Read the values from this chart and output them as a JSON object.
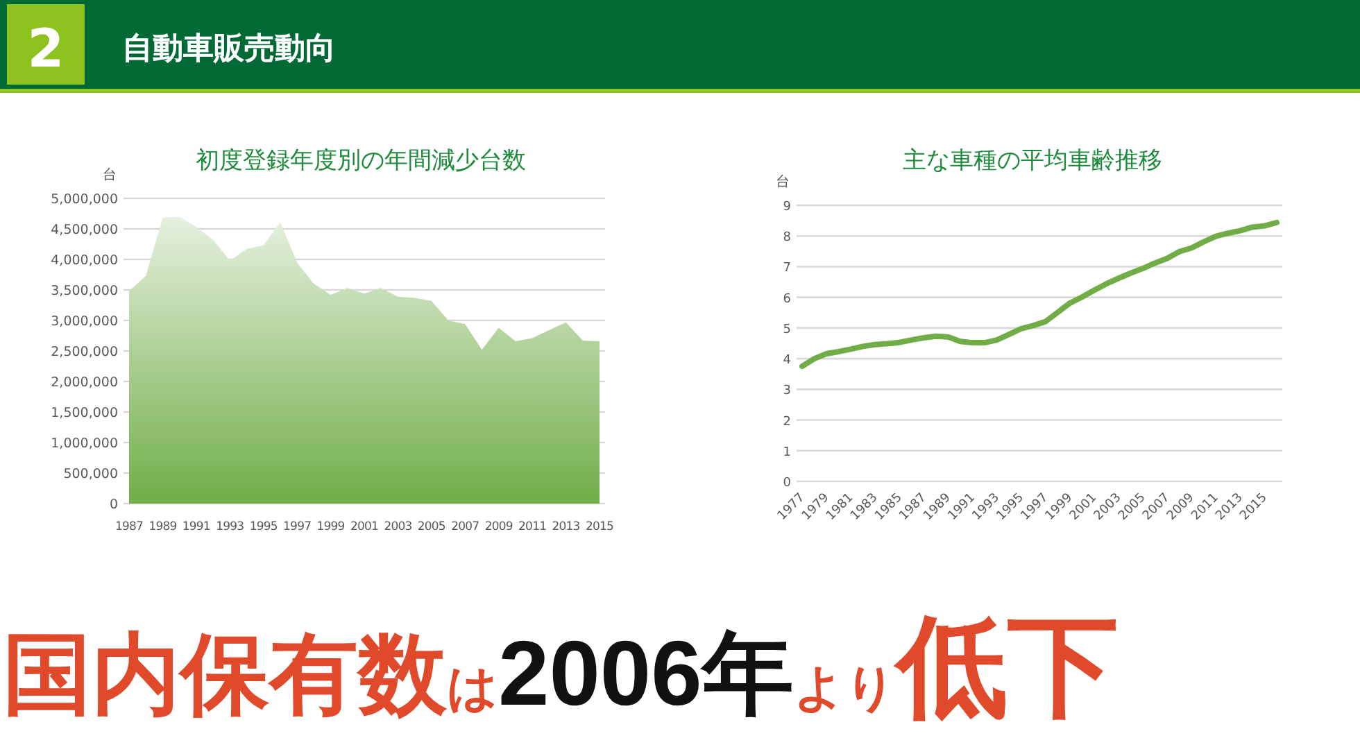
{
  "chart_data": [
    {
      "type": "other",
      "title": "自動車販売動向",
      "annotations": [
        "2",
        "国内保有数は2006年より低下"
      ]
    },
    {
      "type": "area",
      "title": "初度登録年度別の年間減少台数",
      "ylabel": "台",
      "categories": [
        "1987",
        null,
        "1989",
        null,
        "1991",
        null,
        "1993",
        null,
        "1995",
        null,
        "1997",
        null,
        "1999",
        null,
        "2001",
        null,
        "2003",
        null,
        "2005",
        null,
        "2007",
        null,
        "2009",
        null,
        "2011",
        null,
        "2013",
        null,
        "2015"
      ],
      "series": [
        {
          "color": "#70ad47",
          "values": [
            3480000,
            3730000,
            4680000,
            4700000,
            4530000,
            4320000,
            3980000,
            4170000,
            4230000,
            4610000,
            3950000,
            3600000,
            3420000,
            3530000,
            3440000,
            3530000,
            3390000,
            3370000,
            3320000,
            3000000,
            2940000,
            2520000,
            2880000,
            2660000,
            2710000,
            2840000,
            2970000,
            2670000,
            2660000
          ]
        }
      ],
      "ylim": [
        0,
        5000000
      ],
      "yticks": [
        0,
        {
          "value": 500000,
          "label": "500,000"
        },
        {
          "value": 1000000,
          "label": "1,000,000"
        },
        {
          "value": 1500000,
          "label": "1,500,000"
        },
        {
          "value": 2000000,
          "label": "2,000,000"
        },
        {
          "value": 2500000,
          "label": "2,500,000"
        },
        {
          "value": 3000000,
          "label": "3,000,000"
        },
        {
          "value": 3500000,
          "label": "3,500,000"
        },
        {
          "value": 4000000,
          "label": "4,000,000"
        },
        {
          "value": 4500000,
          "label": "4,500,000"
        },
        {
          "value": 5000000,
          "label": "5,000,000"
        }
      ],
      "grid": "y"
    },
    {
      "type": "line",
      "title": "主な車種の平均車齢推移",
      "ylabel": "台",
      "categories": [
        "1977",
        null,
        "1979",
        null,
        "1981",
        null,
        "1983",
        null,
        "1985",
        null,
        "1987",
        null,
        "1989",
        null,
        "1991",
        null,
        "1993",
        null,
        "1995",
        null,
        "1997",
        null,
        "1999",
        null,
        "2001",
        null,
        "2003",
        null,
        "2005",
        null,
        "2007",
        null,
        "2009",
        null,
        "2011",
        null,
        "2013",
        null,
        "2015",
        null
      ],
      "series": [
        {
          "color": "#70ad47",
          "values": [
            3.75,
            4.0,
            4.16,
            4.23,
            4.31,
            4.4,
            4.46,
            4.49,
            4.53,
            4.61,
            4.68,
            4.73,
            4.71,
            4.56,
            4.52,
            4.52,
            4.61,
            4.79,
            4.98,
            5.08,
            5.21,
            5.51,
            5.81,
            6.01,
            6.23,
            6.44,
            6.62,
            6.79,
            6.94,
            7.12,
            7.27,
            7.49,
            7.61,
            7.81,
            7.99,
            8.09,
            8.17,
            8.29,
            8.33,
            8.44
          ]
        }
      ],
      "ylim": [
        0,
        9
      ],
      "yticks": [
        0,
        1,
        2,
        3,
        4,
        5,
        6,
        7,
        8,
        9
      ],
      "grid": "y",
      "marker": "none",
      "line_style": "solid"
    }
  ]
}
